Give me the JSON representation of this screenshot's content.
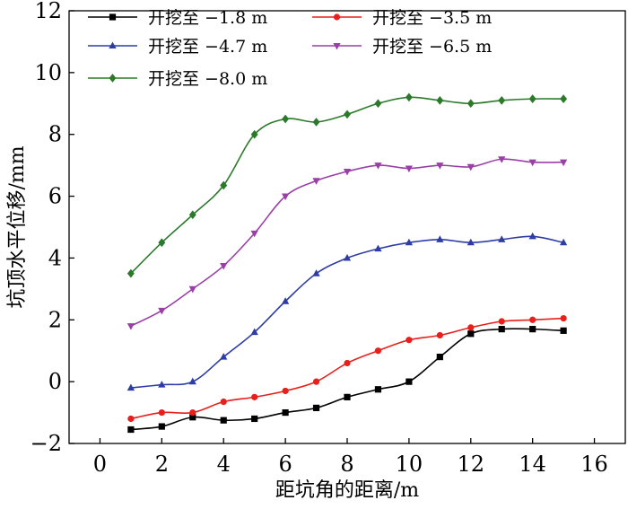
{
  "chart_data": {
    "type": "line",
    "xlabel": "距坑角的距离/m",
    "ylabel": "坑顶水平位移/mm",
    "xlim": [
      -1,
      17
    ],
    "ylim": [
      -2,
      12
    ],
    "xticks": [
      0,
      2,
      4,
      6,
      8,
      10,
      12,
      14,
      16
    ],
    "yticks": [
      -2,
      0,
      2,
      4,
      6,
      8,
      10,
      12
    ],
    "grid": false,
    "legend_position": "top-left",
    "x": [
      1,
      2,
      3,
      4,
      5,
      6,
      7,
      8,
      9,
      10,
      11,
      12,
      13,
      14,
      15
    ],
    "series": [
      {
        "name": "开挖至 −1.8 m",
        "color": "#000000",
        "marker": "square",
        "values": [
          -1.55,
          -1.45,
          -1.15,
          -1.25,
          -1.2,
          -1.0,
          -0.85,
          -0.5,
          -0.25,
          0.0,
          0.8,
          1.55,
          1.7,
          1.7,
          1.65
        ]
      },
      {
        "name": "开挖至 −3.5 m",
        "color": "#e8201c",
        "marker": "circle",
        "values": [
          -1.2,
          -1.0,
          -1.0,
          -0.65,
          -0.5,
          -0.3,
          0.0,
          0.6,
          1.0,
          1.35,
          1.5,
          1.75,
          1.95,
          2.0,
          2.05
        ]
      },
      {
        "name": "开挖至 −4.7 m",
        "color": "#2e3da6",
        "marker": "triangle-up",
        "values": [
          -0.2,
          -0.1,
          0.0,
          0.8,
          1.6,
          2.6,
          3.5,
          4.0,
          4.3,
          4.5,
          4.6,
          4.5,
          4.6,
          4.7,
          4.5
        ]
      },
      {
        "name": "开挖至 −6.5 m",
        "color": "#9b3fa8",
        "marker": "triangle-down",
        "values": [
          1.8,
          2.3,
          3.0,
          3.75,
          4.8,
          6.0,
          6.5,
          6.8,
          7.0,
          6.9,
          7.0,
          6.95,
          7.2,
          7.1,
          7.1
        ]
      },
      {
        "name": "开挖至 −8.0 m",
        "color": "#2a7a2a",
        "marker": "diamond",
        "values": [
          3.5,
          4.5,
          5.4,
          6.35,
          8.0,
          8.5,
          8.4,
          8.65,
          9.0,
          9.2,
          9.1,
          9.0,
          9.1,
          9.15,
          9.15
        ]
      }
    ]
  }
}
